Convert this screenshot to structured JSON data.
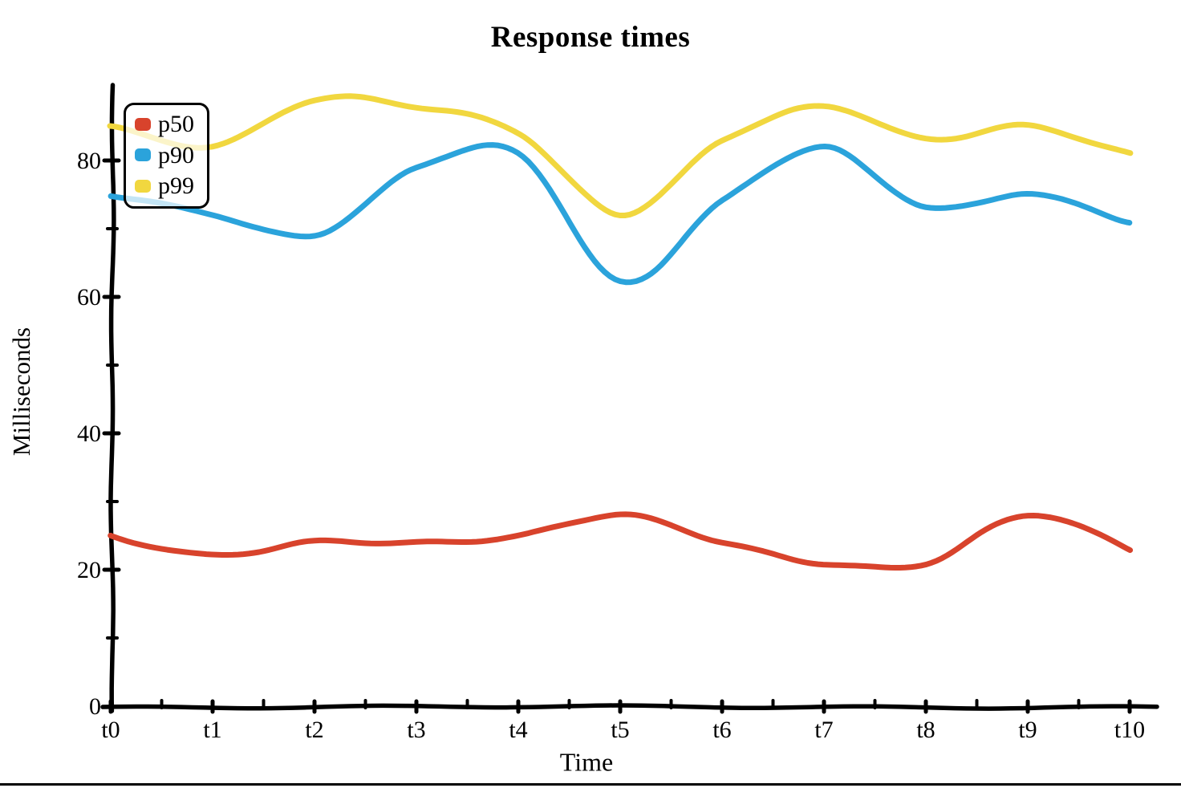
{
  "title": "Response times",
  "chart_data": {
    "type": "line",
    "title": "Response times",
    "xlabel": "Time",
    "ylabel": "Milliseconds",
    "x_tick_labels": [
      "t0",
      "t1",
      "t2",
      "t3",
      "t4",
      "t5",
      "t6",
      "t7",
      "t8",
      "t9",
      "t10"
    ],
    "y_ticks": [
      0,
      20,
      40,
      60,
      80
    ],
    "y_minor_ticks": [
      10,
      30,
      50,
      70
    ],
    "ylim": [
      0,
      90
    ],
    "grid": false,
    "legend_position": "upper-left",
    "style": "xkcd-hand-drawn",
    "series": [
      {
        "name": "p50",
        "color": "#D8432C",
        "values": [
          25,
          22,
          24,
          24,
          25,
          28,
          24,
          21,
          21,
          28,
          23
        ]
      },
      {
        "name": "p90",
        "color": "#2BA3DB",
        "values": [
          75,
          72,
          69,
          79,
          81,
          62,
          74,
          82,
          73,
          75,
          71
        ]
      },
      {
        "name": "p99",
        "color": "#F1D73F",
        "values": [
          85,
          82,
          89,
          88,
          84,
          72,
          83,
          88,
          83,
          85,
          81
        ]
      }
    ]
  },
  "colors": {
    "axis": "#000000",
    "text": "#000000",
    "background": "#FFFFFF",
    "legend_border": "#000000"
  }
}
